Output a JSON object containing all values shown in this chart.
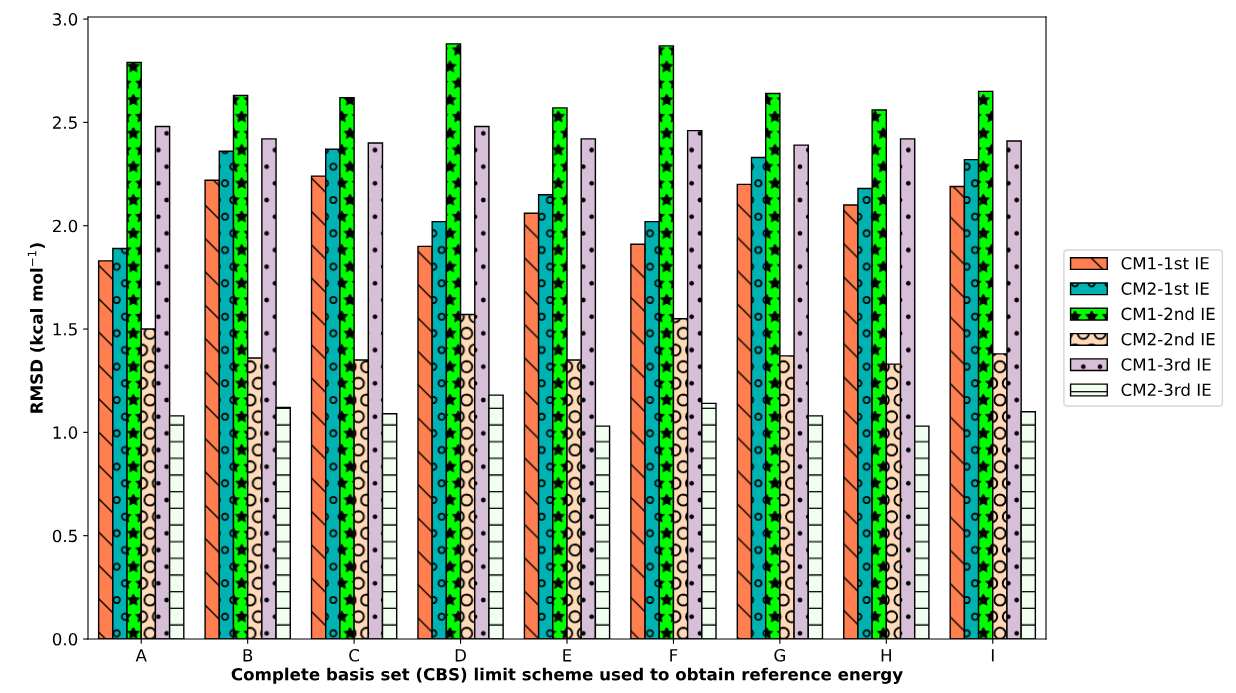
{
  "chart_data": {
    "type": "bar",
    "xlabel": "Complete basis set (CBS) limit scheme used to obtain reference energy",
    "ylabel": "RMSD (kcal mol$^{−1}$)",
    "categories": [
      "A",
      "B",
      "C",
      "D",
      "E",
      "F",
      "G",
      "H",
      "I"
    ],
    "series": [
      {
        "name": "CM1-1st IE",
        "color": "#ff7f50",
        "values": [
          1.83,
          2.22,
          2.24,
          1.9,
          2.06,
          1.91,
          2.2,
          2.1,
          2.19
        ]
      },
      {
        "name": "CM2-1st IE",
        "color": "#00b3b3",
        "values": [
          1.89,
          2.36,
          2.37,
          2.02,
          2.15,
          2.02,
          2.33,
          2.18,
          2.32
        ]
      },
      {
        "name": "CM1-2nd IE",
        "color": "#00ff00",
        "values": [
          2.79,
          2.63,
          2.62,
          2.88,
          2.57,
          2.87,
          2.64,
          2.56,
          2.65
        ]
      },
      {
        "name": "CM2-2nd IE",
        "color": "#ffdab9",
        "values": [
          1.5,
          1.36,
          1.35,
          1.57,
          1.35,
          1.55,
          1.37,
          1.33,
          1.38
        ]
      },
      {
        "name": "CM1-3rd IE",
        "color": "#d8bfd8",
        "values": [
          2.48,
          2.42,
          2.4,
          2.48,
          2.42,
          2.46,
          2.39,
          2.42,
          2.41
        ]
      },
      {
        "name": "CM2-3rd IE",
        "color": "#f0fff0",
        "values": [
          1.08,
          1.12,
          1.09,
          1.18,
          1.03,
          1.14,
          1.08,
          1.03,
          1.1
        ]
      }
    ],
    "ylim": [
      0,
      3.01
    ],
    "yticks": [
      {
        "value": 0,
        "label": "0.0"
      },
      {
        "value": 0.5,
        "label": "0.5"
      },
      {
        "value": 1.0,
        "label": "1.0"
      },
      {
        "value": 1.5,
        "label": "1.5"
      },
      {
        "value": 2.0,
        "label": "2.0"
      },
      {
        "value": 2.5,
        "label": "2.5"
      },
      {
        "value": 3.0,
        "label": "3.0"
      }
    ],
    "legend": "right",
    "grid": false
  }
}
